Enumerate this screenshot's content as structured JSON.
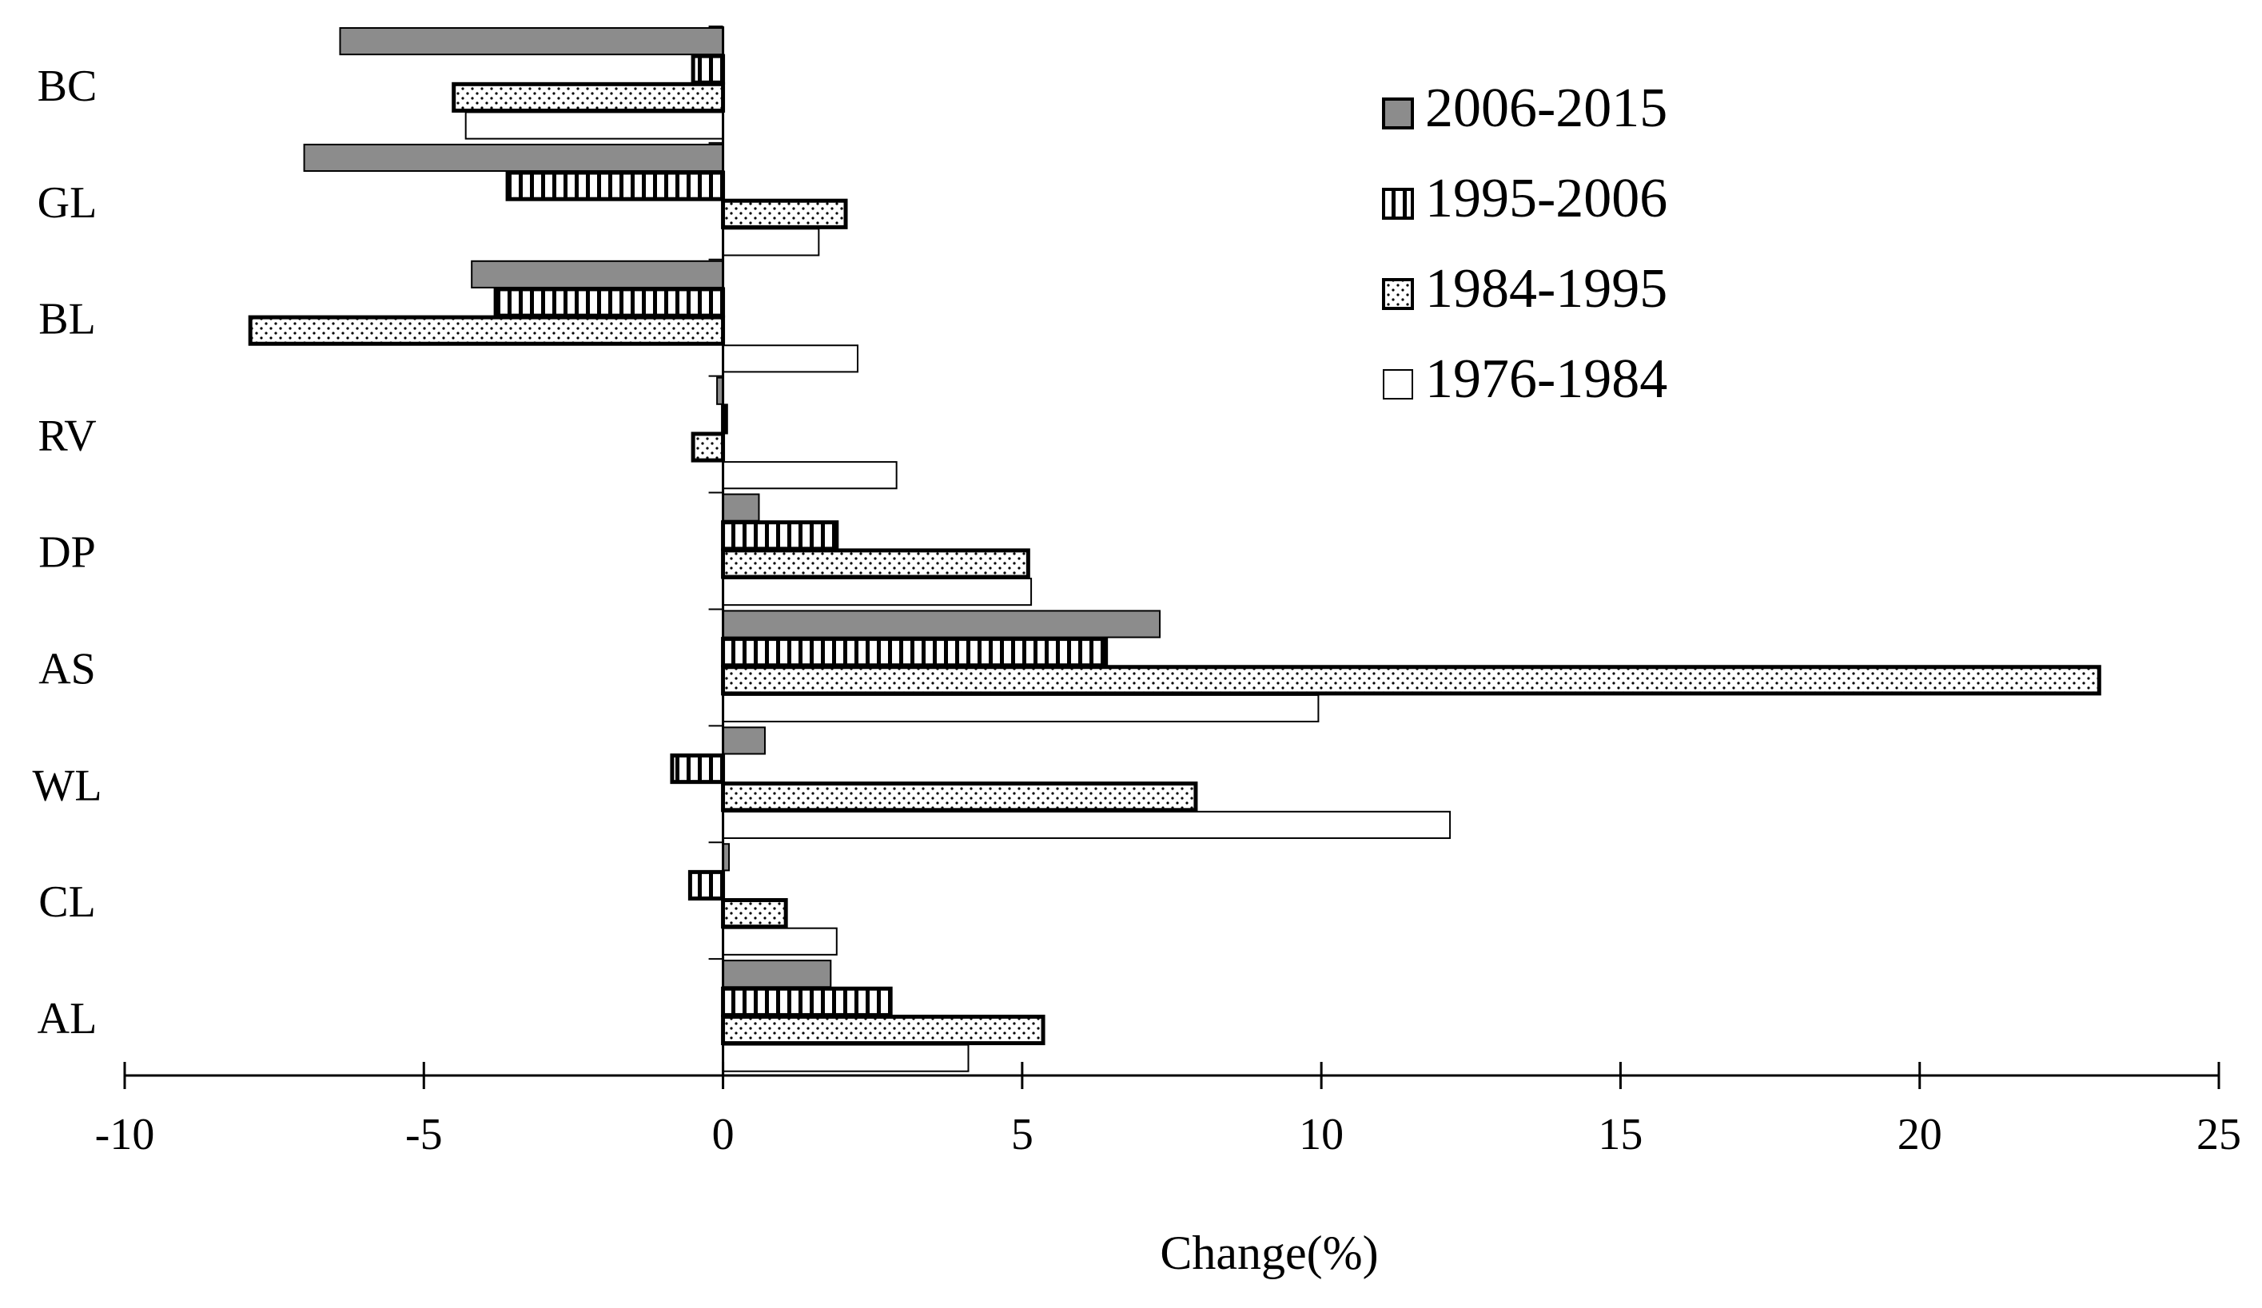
{
  "chart_data": {
    "type": "bar",
    "orientation": "horizontal",
    "categories": [
      "BC",
      "GL",
      "BL",
      "RV",
      "DP",
      "AS",
      "WL",
      "CL",
      "AL"
    ],
    "series": [
      {
        "name": "2006-2015",
        "pattern": "solid-gray",
        "values": [
          -6.4,
          -7.0,
          -4.2,
          -0.1,
          0.6,
          7.3,
          0.7,
          0.1,
          1.8
        ]
      },
      {
        "name": "1995-2006",
        "pattern": "vertical-stripes",
        "values": [
          -0.5,
          -3.6,
          -3.8,
          0.05,
          1.9,
          6.4,
          -0.85,
          -0.55,
          2.8
        ]
      },
      {
        "name": "1984-1995",
        "pattern": "dots",
        "values": [
          -4.5,
          2.05,
          -7.9,
          -0.5,
          5.1,
          23.0,
          7.9,
          1.05,
          5.35
        ]
      },
      {
        "name": "1976-1984",
        "pattern": "white",
        "values": [
          -4.3,
          1.6,
          2.25,
          2.9,
          5.15,
          9.95,
          12.15,
          1.9,
          4.1
        ]
      }
    ],
    "legend_order": [
      "2006-2015",
      "1995-2006",
      "1984-1995",
      "1976-1984"
    ],
    "xlabel": "Change(%)",
    "ylabel": "",
    "title": "",
    "xlim": [
      -10,
      25
    ],
    "xticks": [
      -10,
      -5,
      0,
      5,
      10,
      15,
      20,
      25
    ],
    "tick_labels": [
      "-10",
      "-5",
      "0",
      "5",
      "10",
      "15",
      "20",
      "25"
    ],
    "grid": false,
    "legend_position": "top-right",
    "colors": {
      "gray_fill": "#8c8c8c",
      "outline": "#000000",
      "background": "#ffffff"
    }
  }
}
